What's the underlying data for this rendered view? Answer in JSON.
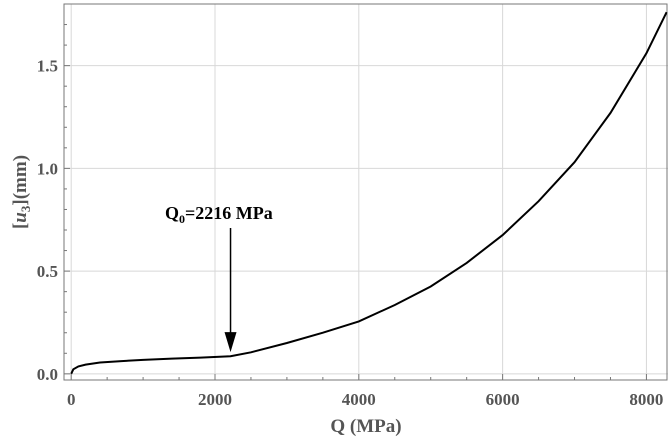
{
  "chart_data": {
    "type": "line",
    "title": "",
    "xlabel": "Q (MPa)",
    "ylabel": "[u3](mm)",
    "ylabel_parts": {
      "open": "[",
      "var": "u",
      "sub": "3",
      "close": "](mm)"
    },
    "xlim": [
      -100,
      8300
    ],
    "ylim": [
      -0.03,
      1.8
    ],
    "xticks": [
      0,
      2000,
      4000,
      6000,
      8000
    ],
    "xtick_labels": [
      "0",
      "2000",
      "4000",
      "6000",
      "8000"
    ],
    "yticks": [
      0.0,
      0.5,
      1.0,
      1.5
    ],
    "ytick_labels": [
      "0.0",
      "0.5",
      "1.0",
      "1.5"
    ],
    "grid": true,
    "series": [
      {
        "color": "#000000",
        "x": [
          0,
          30,
          100,
          200,
          400,
          700,
          1000,
          1400,
          1800,
          2216,
          2500,
          3000,
          3500,
          4000,
          4500,
          5000,
          5500,
          6000,
          6500,
          7000,
          7500,
          8000,
          8280
        ],
        "y": [
          0.0,
          0.022,
          0.036,
          0.045,
          0.055,
          0.062,
          0.068,
          0.074,
          0.079,
          0.086,
          0.105,
          0.15,
          0.2,
          0.255,
          0.335,
          0.425,
          0.54,
          0.675,
          0.84,
          1.03,
          1.27,
          1.56,
          1.76
        ]
      }
    ],
    "annotation": {
      "label_parts": {
        "base": "Q",
        "sub": "0",
        "rest": "=2216 MPa"
      },
      "x": 2216,
      "y": 0.086,
      "arrow": "down"
    }
  }
}
